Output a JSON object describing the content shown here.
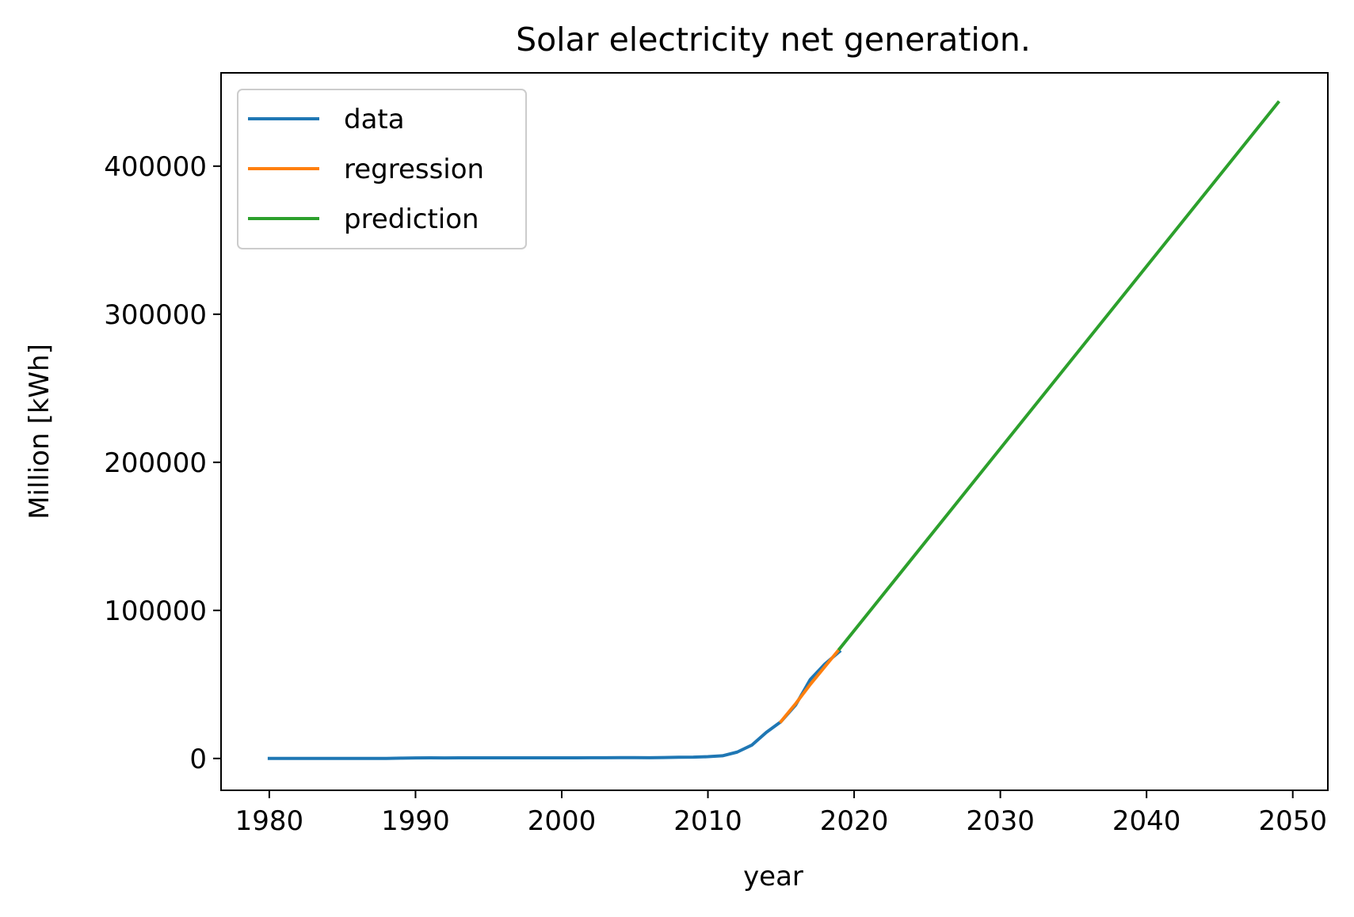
{
  "chart_data": {
    "type": "line",
    "title": "Solar electricity net generation.",
    "xlabel": "year",
    "ylabel": "Million [kWh]",
    "xlim": [
      1976.7,
      2052.4
    ],
    "ylim": [
      -21500,
      463000
    ],
    "xticks": [
      1980,
      1990,
      2000,
      2010,
      2020,
      2030,
      2040,
      2050
    ],
    "yticks": [
      0,
      100000,
      200000,
      300000,
      400000
    ],
    "grid": false,
    "legend_position": "upper left",
    "series": [
      {
        "name": "data",
        "color": "#1f77b4",
        "x": [
          1980,
          1981,
          1982,
          1983,
          1984,
          1985,
          1986,
          1987,
          1988,
          1989,
          1990,
          1991,
          1992,
          1993,
          1994,
          1995,
          1996,
          1997,
          1998,
          1999,
          2000,
          2001,
          2002,
          2003,
          2004,
          2005,
          2006,
          2007,
          2008,
          2009,
          2010,
          2011,
          2012,
          2013,
          2014,
          2015,
          2016,
          2017,
          2018,
          2019
        ],
        "y": [
          0,
          0,
          0,
          0,
          0,
          0,
          0,
          0,
          0,
          200,
          350,
          400,
          350,
          400,
          450,
          450,
          450,
          450,
          450,
          450,
          450,
          450,
          500,
          500,
          550,
          550,
          500,
          600,
          850,
          900,
          1200,
          1800,
          4300,
          9000,
          17700,
          24900,
          36100,
          53300,
          63800,
          72200
        ]
      },
      {
        "name": "regression",
        "color": "#ff7f0e",
        "x": [
          2015,
          2016,
          2017,
          2018,
          2019
        ],
        "y": [
          25000,
          37000,
          50000,
          62000,
          74000
        ]
      },
      {
        "name": "prediction",
        "color": "#2ca02c",
        "x": [
          2019,
          2049
        ],
        "y": [
          74000,
          443000
        ]
      }
    ]
  }
}
